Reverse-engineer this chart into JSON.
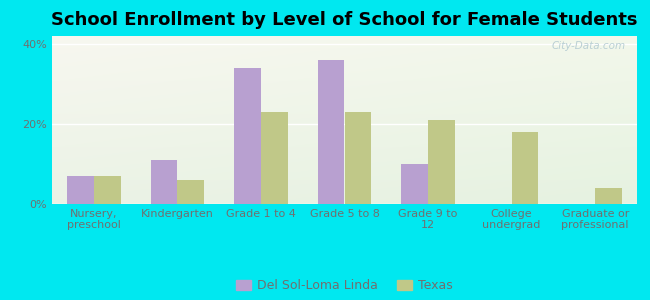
{
  "title": "School Enrollment by Level of School for Female Students",
  "categories": [
    "Nursery,\npreschool",
    "Kindergarten",
    "Grade 1 to 4",
    "Grade 5 to 8",
    "Grade 9 to\n12",
    "College\nundergrad",
    "Graduate or\nprofessional"
  ],
  "del_sol_values": [
    7,
    11,
    34,
    36,
    10,
    0,
    0
  ],
  "texas_values": [
    7,
    6,
    23,
    23,
    21,
    18,
    4
  ],
  "del_sol_color": "#b8a0d0",
  "texas_color": "#c0c888",
  "background_outer": "#00e8f0",
  "background_inner_topleft": "#e8f5e0",
  "background_inner_bottomright": "#d0ede8",
  "ylim": [
    0,
    42
  ],
  "yticks": [
    0,
    20,
    40
  ],
  "ytick_labels": [
    "0%",
    "20%",
    "40%"
  ],
  "bar_width": 0.32,
  "legend_labels": [
    "Del Sol-Loma Linda",
    "Texas"
  ],
  "watermark": "City-Data.com",
  "title_fontsize": 13,
  "tick_fontsize": 8,
  "label_color": "#707070"
}
